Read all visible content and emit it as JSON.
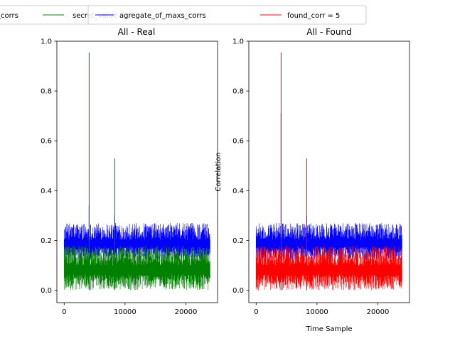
{
  "colors": {
    "aggregate": "#0000ff",
    "real": "#008000",
    "found": "#ff0000",
    "axis": "#000000",
    "legend_border": "#cccccc"
  },
  "legend": {
    "entries": [
      {
        "label": "_corrs",
        "color": "#0000ff"
      },
      {
        "label": "secret_value",
        "color": "#008000"
      },
      {
        "label": "agregate_of_maxs_corrs",
        "color": "#0000ff"
      },
      {
        "label": "found_corr = 5",
        "color": "#ff0000"
      }
    ]
  },
  "chart_data": [
    {
      "type": "line",
      "title": "All - Real",
      "xlabel": "",
      "ylabel": "",
      "xlim": [
        -1200,
        25200
      ],
      "ylim": [
        -0.05,
        1.0
      ],
      "xticks": [
        0,
        10000,
        20000
      ],
      "xtick_labels": [
        "0",
        "10000",
        "20000"
      ],
      "yticks": [
        0.0,
        0.2,
        0.4,
        0.6,
        0.8,
        1.0
      ],
      "ytick_labels": [
        "0.0",
        "0.2",
        "0.4",
        "0.6",
        "0.8",
        "1.0"
      ],
      "grid": false,
      "n_samples": 24000,
      "series": [
        {
          "name": "agregate_of_maxs_corrs",
          "color": "#0000ff",
          "band": [
            0.12,
            0.27
          ],
          "spikes": [
            {
              "x": 4100,
              "y": 0.34
            },
            {
              "x": 8300,
              "y": 0.3
            }
          ]
        },
        {
          "name": "secret_value",
          "color": "#008000",
          "band": [
            0.0,
            0.18
          ],
          "spikes": [
            {
              "x": 4100,
              "y": 0.955
            },
            {
              "x": 8300,
              "y": 0.53
            }
          ]
        }
      ]
    },
    {
      "type": "line",
      "title": "All - Found",
      "xlabel": "Time Sample",
      "ylabel": "Correlation",
      "xlim": [
        -1200,
        25200
      ],
      "ylim": [
        -0.05,
        1.0
      ],
      "xticks": [
        0,
        10000,
        20000
      ],
      "xtick_labels": [
        "0",
        "10000",
        "20000"
      ],
      "yticks": [
        0.0,
        0.2,
        0.4,
        0.6,
        0.8,
        1.0
      ],
      "ytick_labels": [
        "0.0",
        "0.2",
        "0.4",
        "0.6",
        "0.8",
        "1.0"
      ],
      "grid": false,
      "n_samples": 24000,
      "series": [
        {
          "name": "agregate_of_maxs_corrs",
          "color": "#0000ff",
          "band": [
            0.12,
            0.27
          ],
          "spikes": [
            {
              "x": 4100,
              "y": 0.71
            },
            {
              "x": 8300,
              "y": 0.3
            }
          ]
        },
        {
          "name": "found_corr = 5",
          "color": "#ff0000",
          "band": [
            0.0,
            0.18
          ],
          "spikes": [
            {
              "x": 4100,
              "y": 0.955
            },
            {
              "x": 8300,
              "y": 0.53
            }
          ]
        }
      ]
    }
  ]
}
